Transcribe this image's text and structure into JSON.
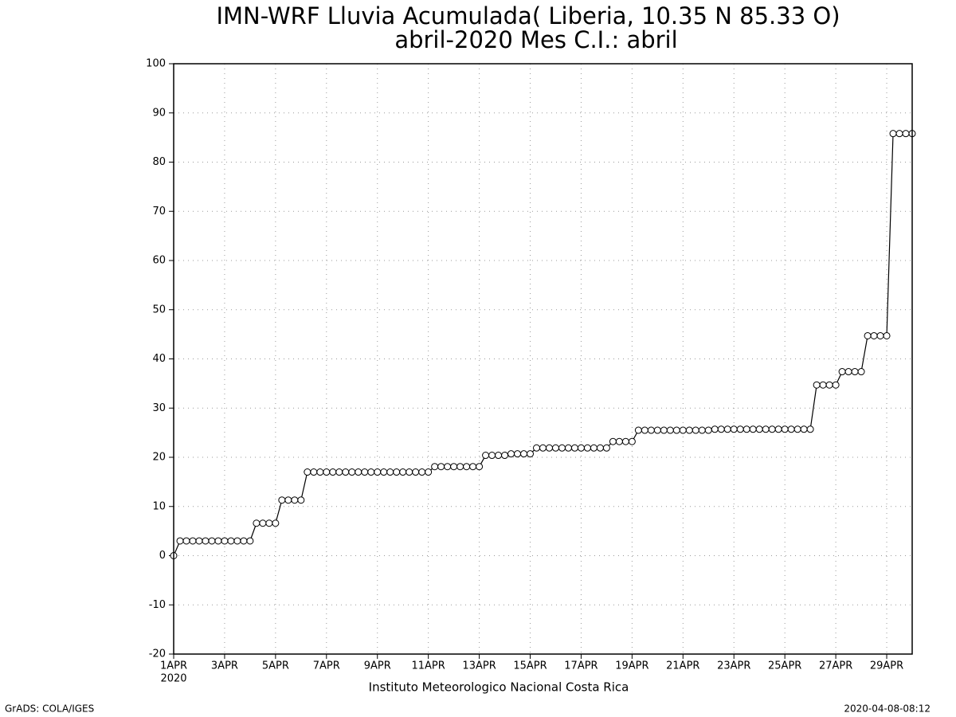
{
  "chart_data": {
    "type": "line",
    "title": "IMN-WRF  Lluvia Acumulada( Liberia, 10.35  N 85.33  O)",
    "subtitle": "abril-2020 Mes C.I.: abril",
    "x_sublabel": "2020",
    "xlabel": "Instituto Meteorologico Nacional Costa Rica",
    "footer_left": "GrADS: COLA/IGES",
    "footer_right": "2020-04-08-08:12",
    "grid": true,
    "marker": "open-circle",
    "xlim": [
      0,
      29
    ],
    "ylim": [
      -20,
      100
    ],
    "yticks": [
      -20,
      -10,
      0,
      10,
      20,
      30,
      40,
      50,
      60,
      70,
      80,
      90,
      100
    ],
    "xticks": [
      {
        "value": 0,
        "label": "1APR"
      },
      {
        "value": 2,
        "label": "3APR"
      },
      {
        "value": 4,
        "label": "5APR"
      },
      {
        "value": 6,
        "label": "7APR"
      },
      {
        "value": 8,
        "label": "9APR"
      },
      {
        "value": 10,
        "label": "11APR"
      },
      {
        "value": 12,
        "label": "13APR"
      },
      {
        "value": 14,
        "label": "15APR"
      },
      {
        "value": 16,
        "label": "17APR"
      },
      {
        "value": 18,
        "label": "19APR"
      },
      {
        "value": 20,
        "label": "21APR"
      },
      {
        "value": 22,
        "label": "23APR"
      },
      {
        "value": 24,
        "label": "25APR"
      },
      {
        "value": 26,
        "label": "27APR"
      },
      {
        "value": 28,
        "label": "29APR"
      }
    ],
    "x": [
      0,
      0.25,
      0.5,
      0.75,
      1,
      1.25,
      1.5,
      1.75,
      2,
      2.25,
      2.5,
      2.75,
      3,
      3.25,
      3.5,
      3.75,
      4,
      4.25,
      4.5,
      4.75,
      5,
      5.25,
      5.5,
      5.75,
      6,
      6.25,
      6.5,
      6.75,
      7,
      7.25,
      7.5,
      7.75,
      8,
      8.25,
      8.5,
      8.75,
      9,
      9.25,
      9.5,
      9.75,
      10,
      10.25,
      10.5,
      10.75,
      11,
      11.25,
      11.5,
      11.75,
      12,
      12.25,
      12.5,
      12.75,
      13,
      13.25,
      13.5,
      13.75,
      14,
      14.25,
      14.5,
      14.75,
      15,
      15.25,
      15.5,
      15.75,
      16,
      16.25,
      16.5,
      16.75,
      17,
      17.25,
      17.5,
      17.75,
      18,
      18.25,
      18.5,
      18.75,
      19,
      19.25,
      19.5,
      19.75,
      20,
      20.25,
      20.5,
      20.75,
      21,
      21.25,
      21.5,
      21.75,
      22,
      22.25,
      22.5,
      22.75,
      23,
      23.25,
      23.5,
      23.75,
      24,
      24.25,
      24.5,
      24.75,
      25,
      25.25,
      25.5,
      25.75,
      26,
      26.25,
      26.5,
      26.75,
      27,
      27.25,
      27.5,
      27.75,
      28,
      28.25,
      28.5,
      28.75,
      29
    ],
    "series": [
      {
        "color": "#000000",
        "values": [
          0,
          3,
          3,
          3,
          3,
          3,
          3,
          3,
          3,
          3,
          3,
          3,
          3,
          6.6,
          6.6,
          6.6,
          6.6,
          11.3,
          11.3,
          11.3,
          11.3,
          17,
          17,
          17,
          17,
          17,
          17,
          17,
          17,
          17,
          17,
          17,
          17,
          17,
          17,
          17,
          17,
          17,
          17,
          17,
          17,
          18.1,
          18.1,
          18.1,
          18.1,
          18.1,
          18.1,
          18.1,
          18.1,
          20.4,
          20.4,
          20.4,
          20.4,
          20.7,
          20.7,
          20.7,
          20.7,
          21.9,
          21.9,
          21.9,
          21.9,
          21.9,
          21.9,
          21.9,
          21.9,
          21.9,
          21.9,
          21.9,
          21.9,
          23.2,
          23.2,
          23.2,
          23.2,
          25.5,
          25.5,
          25.5,
          25.5,
          25.5,
          25.5,
          25.5,
          25.5,
          25.5,
          25.5,
          25.5,
          25.5,
          25.7,
          25.7,
          25.7,
          25.7,
          25.7,
          25.7,
          25.7,
          25.7,
          25.7,
          25.7,
          25.7,
          25.7,
          25.7,
          25.7,
          25.7,
          25.7,
          34.7,
          34.7,
          34.7,
          34.7,
          37.4,
          37.4,
          37.4,
          37.4,
          44.7,
          44.7,
          44.7,
          44.7,
          85.8,
          85.8,
          85.8,
          85.8
        ]
      }
    ]
  }
}
